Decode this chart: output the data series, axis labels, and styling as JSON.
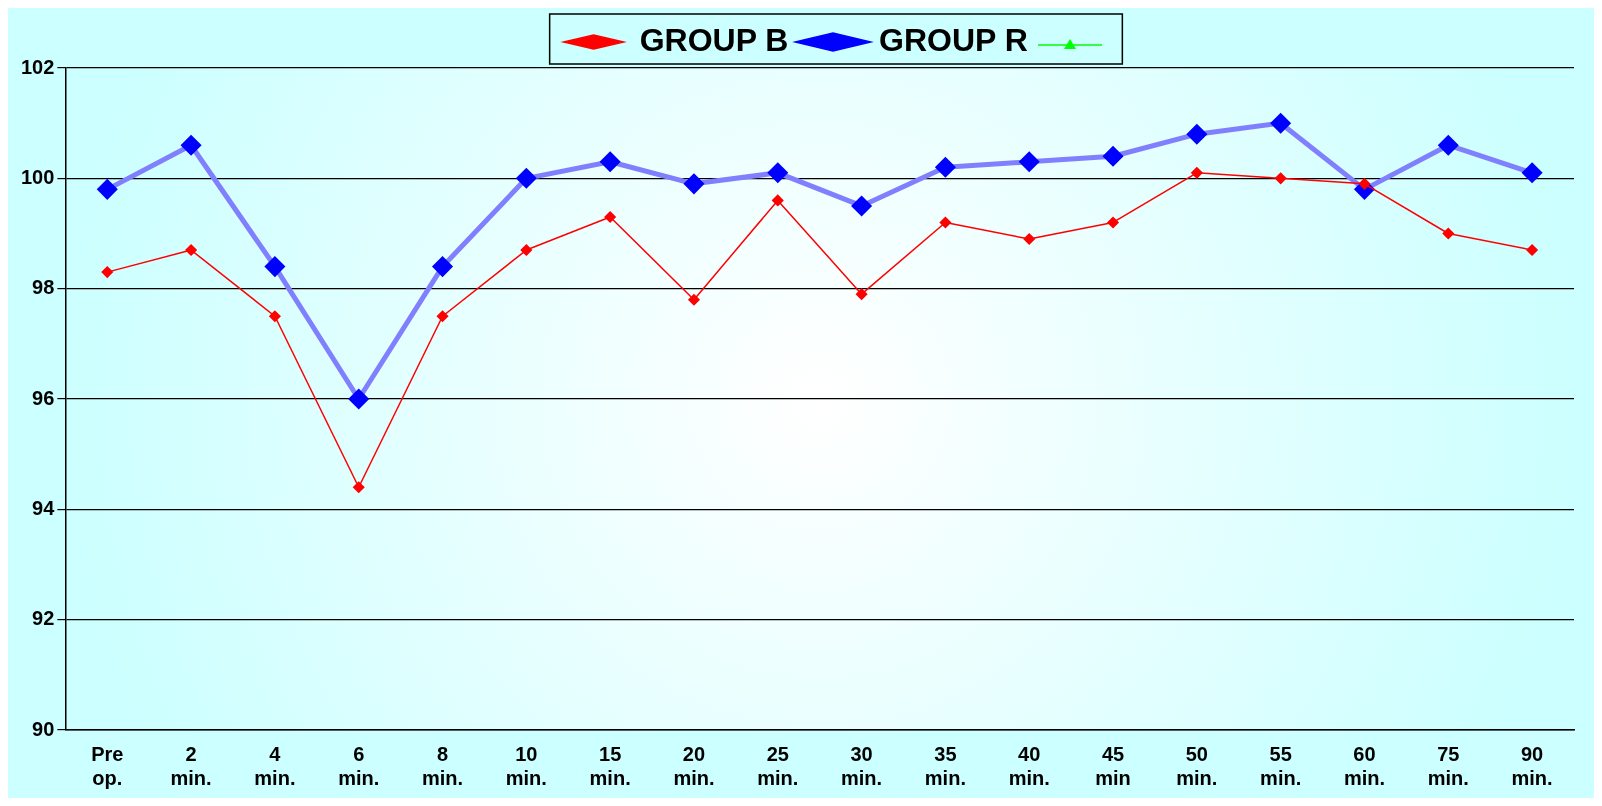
{
  "chart_data": {
    "type": "line",
    "categories": [
      "Pre op.",
      "2 min.",
      "4 min.",
      "6 min.",
      "8 min.",
      "10 min.",
      "15 min.",
      "20 min.",
      "25 min.",
      "30 min.",
      "35 min.",
      "40 min.",
      "45 min",
      "50 min.",
      "55 min.",
      "60 min.",
      "75 min.",
      "90 min."
    ],
    "series": [
      {
        "name": "GROUP B",
        "color": "#ff0000",
        "values": [
          98.3,
          98.7,
          97.5,
          94.4,
          97.5,
          98.7,
          99.3,
          97.8,
          99.6,
          97.9,
          99.2,
          98.9,
          99.2,
          100.1,
          100.0,
          99.9,
          99.0,
          98.7
        ]
      },
      {
        "name": "GROUP R",
        "color": "#0000ff",
        "values": [
          99.8,
          100.6,
          98.4,
          96.0,
          98.4,
          100.0,
          100.3,
          99.9,
          100.1,
          99.5,
          100.2,
          100.3,
          100.4,
          100.8,
          101.0,
          99.8,
          100.6,
          100.1
        ]
      }
    ],
    "ylim": [
      90,
      102
    ],
    "yticks": [
      90,
      92,
      94,
      96,
      98,
      100,
      102
    ],
    "grid": "y",
    "legend": "top",
    "marker": "diamond",
    "line_style": "solid"
  }
}
